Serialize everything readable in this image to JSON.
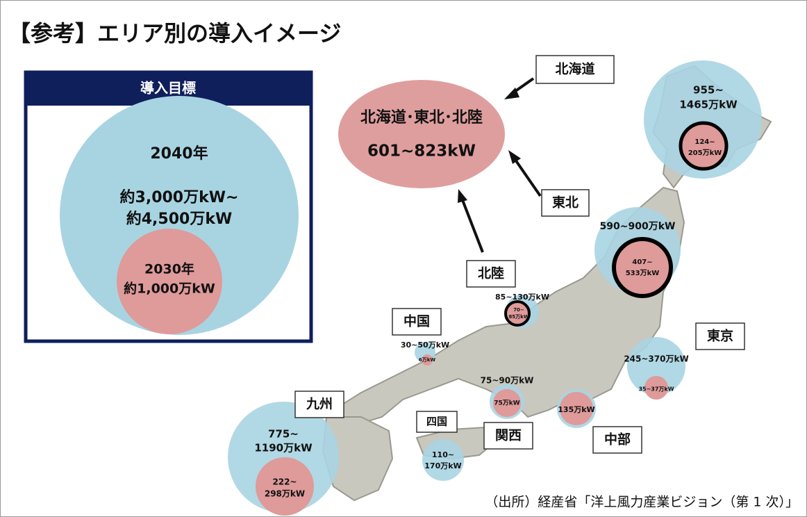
{
  "title": "【参考】エリア別の導入イメージ",
  "legend": {
    "header": "導入目標",
    "outer": {
      "year": "2040年",
      "lines": [
        "約3,000万kW~",
        "約4,500万kW"
      ]
    },
    "inner": {
      "year": "2030年",
      "value": "約1,000万kW"
    }
  },
  "summary": {
    "label": "北海道･東北･北陸",
    "value": "601~823kW"
  },
  "regions": [
    {
      "name": "北海道",
      "outer": [
        "955~",
        "1465万kW"
      ],
      "inner": [
        "124~",
        "205万kW"
      ]
    },
    {
      "name": "東北",
      "outer": [
        "590~900万kW"
      ],
      "inner": [
        "407~",
        "533万kW"
      ]
    },
    {
      "name": "北陸",
      "outer": [
        "85~130万kW"
      ],
      "inner": [
        "70~",
        "85万kW"
      ]
    },
    {
      "name": "中国",
      "outer": [
        "30~50万kW"
      ],
      "inner": [
        "6万kW"
      ]
    },
    {
      "name": "東京",
      "outer": [
        "245~370万kW"
      ],
      "inner": [
        "35~37万kW"
      ]
    },
    {
      "name": "関西",
      "outer": [
        "75~90万kW"
      ],
      "inner": [
        "75万kW"
      ]
    },
    {
      "name": "中部",
      "inner": [
        "135万kW"
      ]
    },
    {
      "name": "九州",
      "outer": [
        "775~",
        "1190万kW"
      ],
      "inner": [
        "222~",
        "298万kW"
      ]
    },
    {
      "name": "四国",
      "outer": [
        "110~",
        "170万kW"
      ]
    }
  ],
  "source": "（出所）経産省「洋上風力産業ビジョン（第 1 次）」"
}
